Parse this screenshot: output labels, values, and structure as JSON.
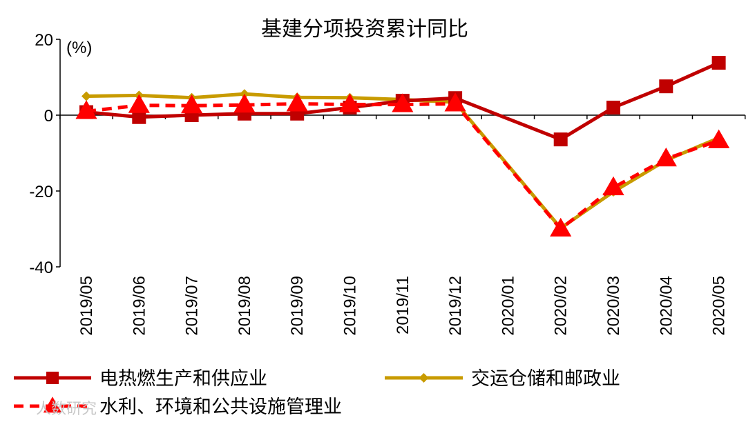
{
  "chart_data": {
    "type": "line",
    "title": "基建分项投资累计同比",
    "ylabel": "(%)",
    "ylim": [
      -40,
      20
    ],
    "yticks": [
      20,
      0,
      -20,
      -40
    ],
    "grid": false,
    "legend_position": "bottom",
    "x": [
      "2019/05",
      "2019/06",
      "2019/07",
      "2019/08",
      "2019/09",
      "2019/10",
      "2019/11",
      "2019/12",
      "2020/01",
      "2020/02",
      "2020/03",
      "2020/04",
      "2020/05"
    ],
    "series": [
      {
        "name": "电热燃生产和供应业",
        "color": "#c00000",
        "marker": "square",
        "dash": "solid",
        "values": [
          0.8,
          -0.5,
          0.0,
          0.4,
          0.4,
          2.0,
          3.8,
          4.5,
          null,
          -6.4,
          2.0,
          7.6,
          13.8
        ]
      },
      {
        "name": "交运仓储和邮政业",
        "color": "#c89b00",
        "marker": "diamond",
        "dash": "solid",
        "values": [
          5.0,
          5.2,
          4.6,
          5.6,
          4.7,
          4.6,
          4.1,
          3.4,
          null,
          -29.8,
          -20.2,
          -11.9,
          -6.0
        ]
      },
      {
        "name": "水利、环境和公共设施管理业",
        "color": "#ff0000",
        "marker": "triangle",
        "dash": "dashed",
        "values": [
          1.0,
          2.6,
          2.5,
          2.7,
          3.0,
          2.8,
          2.8,
          3.0,
          null,
          -30.0,
          -19.1,
          -11.5,
          -6.7
        ]
      }
    ]
  },
  "watermark": "人数研究"
}
